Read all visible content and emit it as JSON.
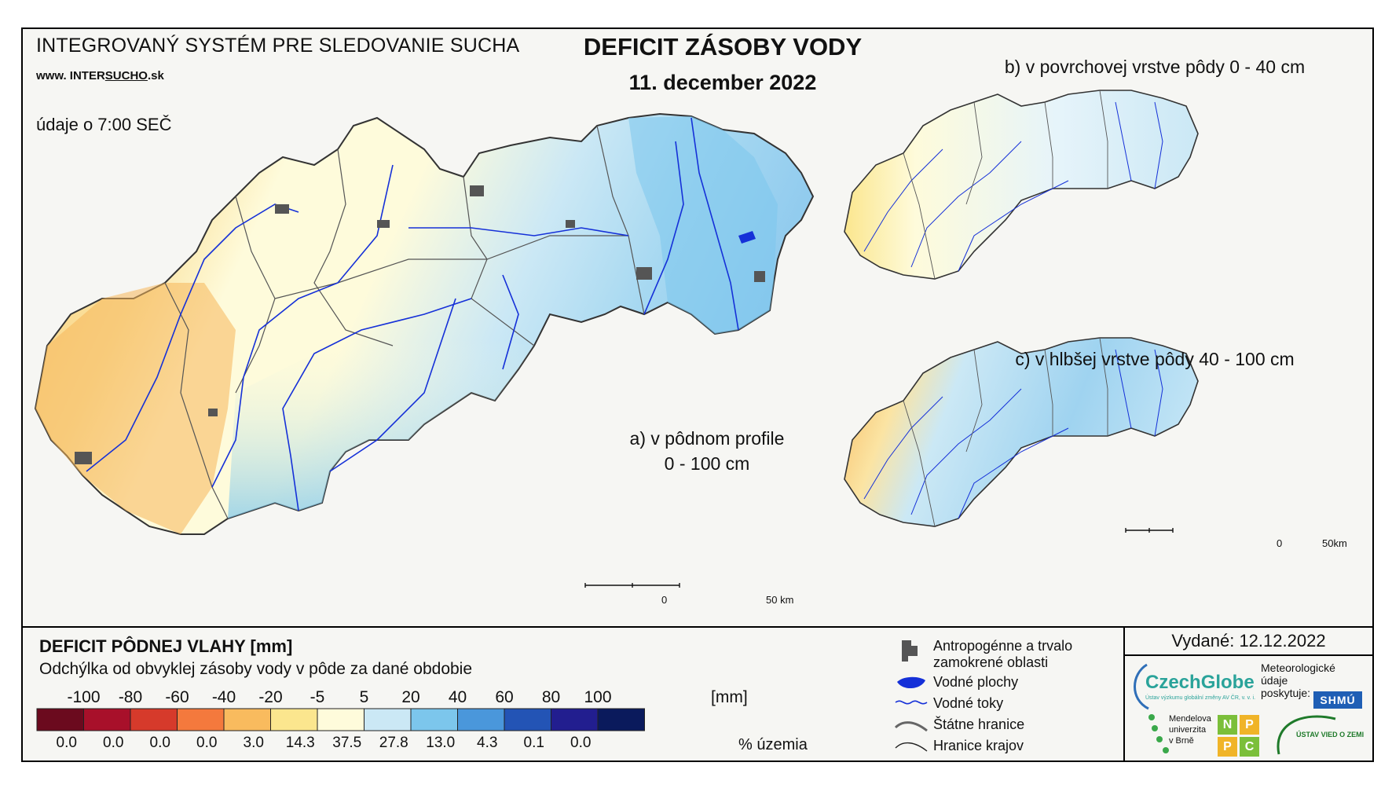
{
  "header": {
    "system_title": "INTEGROVANÝ SYSTÉM PRE SLEDOVANIE SUCHA",
    "website_prefix": "www. INTER",
    "website_u": "SUCHO",
    "website_suffix": ".sk",
    "data_time": "údaje o 7:00 SEČ",
    "main_title": "DEFICIT ZÁSOBY VODY",
    "date": "11. december 2022"
  },
  "maps": {
    "a_label_1": "a) v pôdnom profile",
    "a_label_2": "0 - 100 cm",
    "b_label": "b) v povrchovej vrstve pôdy 0 - 40 cm",
    "c_label": "c) v hlbšej vrstve pôdy 40 - 100 cm",
    "scale_main_0": "0",
    "scale_main_50": "50 km",
    "scale_small_0": "0",
    "scale_small_50": "50km"
  },
  "legend": {
    "title": "DEFICIT PÔDNEJ VLAHY [mm]",
    "subtitle": "Odchýlka od obvyklej zásoby vody v pôde za dané obdobie",
    "unit": "[mm]",
    "percent_label": "% územia",
    "ticks": [
      "-100",
      "-80",
      "-60",
      "-40",
      "-20",
      "-5",
      "5",
      "20",
      "40",
      "60",
      "80",
      "100"
    ],
    "colors": [
      "#6b0a1e",
      "#a8102a",
      "#d63a2b",
      "#f4793d",
      "#f9bb5e",
      "#fbe68e",
      "#fefbdb",
      "#cbe8f5",
      "#7cc6ec",
      "#4a97db",
      "#2354b5",
      "#221e8f",
      "#0a1a5c"
    ],
    "percents": [
      "0.0",
      "0.0",
      "0.0",
      "0.0",
      "3.0",
      "14.3",
      "37.5",
      "27.8",
      "13.0",
      "4.3",
      "0.1",
      "0.0"
    ]
  },
  "symbols": {
    "urban": [
      "Antropogénne a trvalo",
      "zamokrené oblasti"
    ],
    "water_bodies": "Vodné plochy",
    "rivers": "Vodné toky",
    "state_border": "Štátne hranice",
    "region_border": "Hranice krajov"
  },
  "issued": "Vydané: 12.12.2022",
  "logos": {
    "czechglobe": "CzechGlobe",
    "czechglobe_sub": "Ústav výzkumu globální změny AV ČR, v. v. i.",
    "meteo": [
      "Meteorologické",
      "údaje",
      "poskytuje:"
    ],
    "shmu": "SHMÚ",
    "mendel": [
      "Mendelova",
      "univerzita",
      "v Brně"
    ],
    "npc": [
      "N",
      "P",
      "P",
      "C"
    ],
    "uvz": "ÚSTAV VIED O ZEMI"
  }
}
